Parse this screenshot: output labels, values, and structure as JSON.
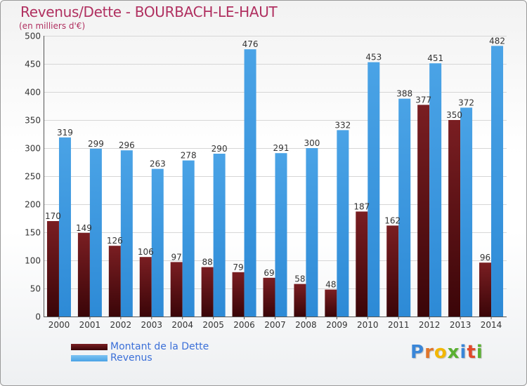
{
  "title": "Revenus/Dette - BOURBACH-LE-HAUT",
  "subtitle": "(en milliers d'€)",
  "legend": {
    "dette": "Montant de la Dette",
    "revenus": "Revenus"
  },
  "logo": {
    "letters": [
      "P",
      "r",
      "o",
      "x",
      "i",
      "t",
      "i"
    ],
    "colors": [
      "#3a86d8",
      "#e0752b",
      "#f2b705",
      "#5ab031",
      "#3a86d8",
      "#e04a2b",
      "#5ab031"
    ]
  },
  "colors": {
    "dette": "#7a1e22",
    "revenus": "#4aa3e6"
  },
  "chart_data": {
    "type": "bar",
    "title": "Revenus/Dette - BOURBACH-LE-HAUT",
    "subtitle": "(en milliers d'€)",
    "categories": [
      "2000",
      "2001",
      "2002",
      "2003",
      "2004",
      "2005",
      "2006",
      "2007",
      "2008",
      "2009",
      "2010",
      "2011",
      "2012",
      "2013",
      "2014"
    ],
    "series": [
      {
        "name": "Montant de la Dette",
        "values": [
          170,
          149,
          126,
          106,
          97,
          88,
          79,
          69,
          58,
          48,
          187,
          162,
          377,
          350,
          96
        ]
      },
      {
        "name": "Revenus",
        "values": [
          319,
          299,
          296,
          263,
          278,
          290,
          476,
          291,
          300,
          332,
          453,
          388,
          451,
          372,
          482
        ]
      }
    ],
    "ylim": [
      0,
      500
    ],
    "yticks": [
      0,
      50,
      100,
      150,
      200,
      250,
      300,
      350,
      400,
      450,
      500
    ],
    "grid": true,
    "legend_position": "bottom-left"
  }
}
